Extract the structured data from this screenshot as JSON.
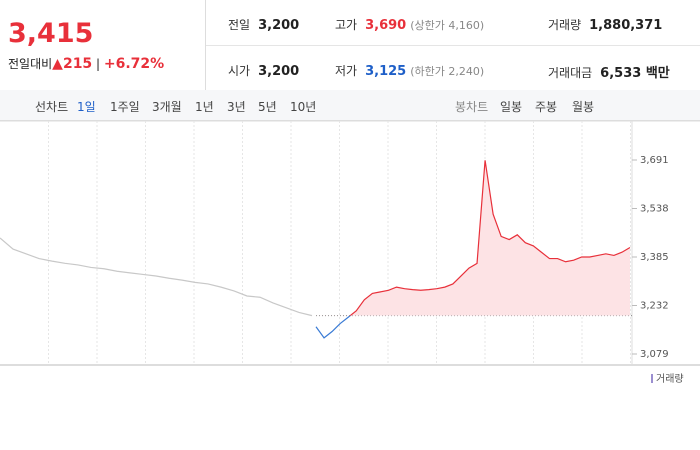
{
  "header": {
    "price": "3,415",
    "change_label": "전일대비",
    "change": "215",
    "change_pct": "+6.72%",
    "stats": [
      {
        "label": "전일",
        "value": "3,200"
      },
      {
        "label": "고가",
        "value": "3,690",
        "note": "(상한가 4,160)"
      },
      {
        "label": "거래량",
        "value": "1,880,371"
      },
      {
        "label": "시가",
        "value": "3,200"
      },
      {
        "label": "저가",
        "value": "3,125",
        "note": "(하한가 2,240)"
      },
      {
        "label": "거래대금",
        "value": "6,533 백만"
      }
    ]
  },
  "toolbar": {
    "line_label": "선차트",
    "periods": [
      "1일",
      "1주일",
      "3개월",
      "1년",
      "3년",
      "5년",
      "10년"
    ],
    "candle_label": "봉차트",
    "candles": [
      "일봉",
      "주봉",
      "월봉"
    ]
  },
  "chart": {
    "ylim": [
      3079,
      3691
    ],
    "yticks": [
      {
        "value": 3079,
        "label": "3,079"
      },
      {
        "value": 3232,
        "label": "3,232"
      },
      {
        "value": 3385,
        "label": "3,385"
      },
      {
        "value": 3538,
        "label": "3,538"
      },
      {
        "value": 3691,
        "label": "3,691"
      }
    ],
    "reference": 3200,
    "series": [
      {
        "color": "#c8c8c8",
        "values": [
          3445,
          3410,
          3395,
          3380,
          3372,
          3365,
          3360,
          3352,
          3348,
          3340,
          3335,
          3330,
          3325,
          3318,
          3312,
          3305,
          3300,
          3290,
          3278,
          3262,
          3258,
          3240,
          3225,
          3210,
          3200
        ]
      },
      {
        "color": "#e8303a",
        "values": [
          3165,
          3130,
          3150,
          3175,
          3195,
          3215,
          3250,
          3270,
          3275,
          3280,
          3290,
          3285,
          3282,
          3280,
          3282,
          3285,
          3290,
          3300,
          3325,
          3350,
          3365,
          3690,
          3520,
          3450,
          3440,
          3455,
          3430,
          3420,
          3400,
          3380,
          3380,
          3370,
          3375,
          3385,
          3385,
          3390,
          3395,
          3390,
          3400,
          3415
        ]
      }
    ],
    "down_color": "#3a7bd5",
    "fill": "#fde3e5",
    "volume_label": "거래량"
  }
}
